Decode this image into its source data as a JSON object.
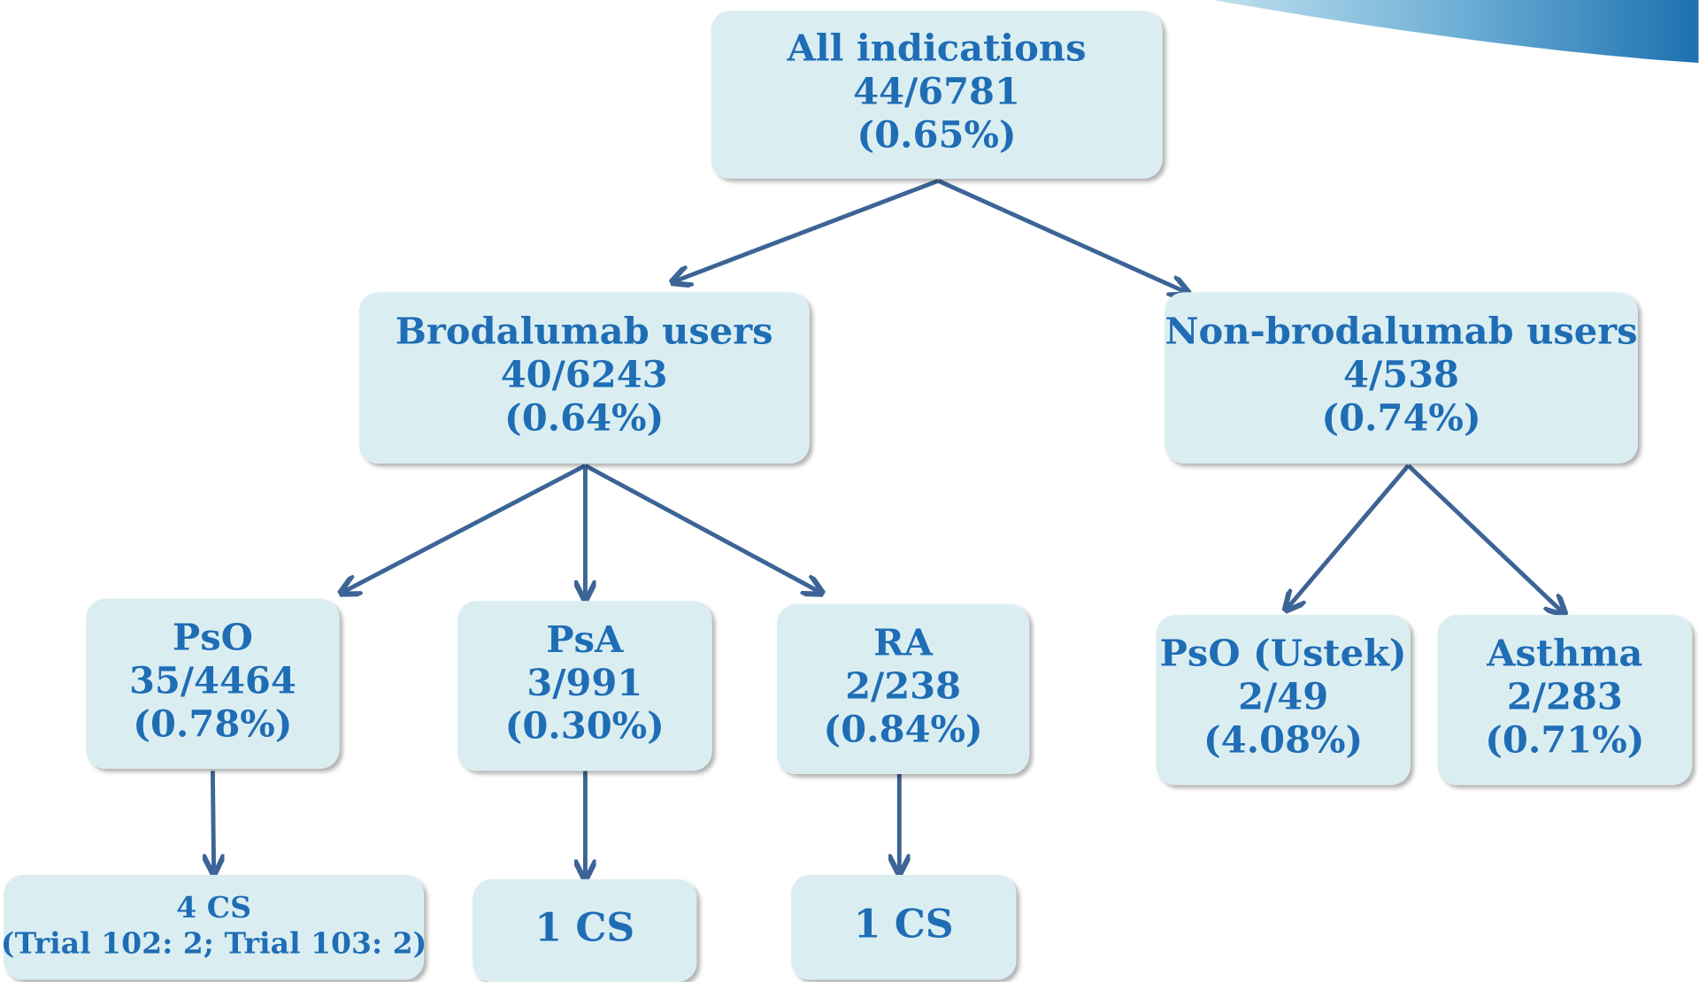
{
  "nodes": [
    {
      "lines": [
        "All indications",
        "44/6781",
        "(0.65%)"
      ]
    },
    {
      "lines": [
        "Brodalumab users",
        "40/6243",
        "(0.64%)"
      ]
    },
    {
      "lines": [
        "Non-brodalumab users",
        "4/538",
        "(0.74%)"
      ]
    },
    {
      "lines": [
        "PsO",
        "35/4464",
        "(0.78%)"
      ]
    },
    {
      "lines": [
        "PsA",
        "3/991",
        "(0.30%)"
      ]
    },
    {
      "lines": [
        "RA",
        "2/238",
        "(0.84%)"
      ]
    },
    {
      "lines": [
        "PsO (Ustek)",
        "2/49",
        "(4.08%)"
      ]
    },
    {
      "lines": [
        "Asthma",
        "2/283",
        "(0.71%)"
      ]
    },
    {
      "lines": [
        "4 CS",
        "(Trial 102: 2; Trial 103: 2)"
      ]
    },
    {
      "lines": [
        "1 CS"
      ]
    },
    {
      "lines": [
        "1 CS"
      ]
    }
  ]
}
